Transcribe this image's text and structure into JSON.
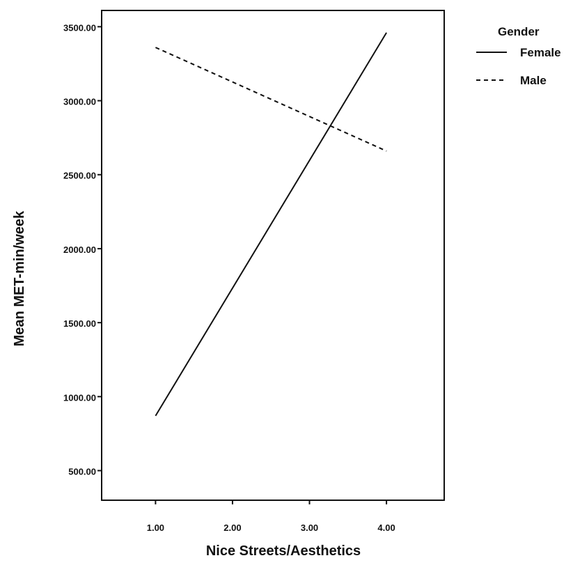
{
  "chart_data": {
    "type": "line",
    "xlabel": "Nice Streets/Aesthetics",
    "ylabel": "Mean MET-min/week",
    "x_ticks": [
      "1.00",
      "2.00",
      "3.00",
      "4.00"
    ],
    "y_ticks": [
      "500.00",
      "1000.00",
      "1500.00",
      "2000.00",
      "2500.00",
      "3000.00",
      "3500.00"
    ],
    "xlim": [
      0.3,
      4.75
    ],
    "ylim": [
      300,
      3610
    ],
    "legend_title": "Gender",
    "legend_position": "top-right",
    "grid": false,
    "series": [
      {
        "name": "Female",
        "style": "solid",
        "color": "#111111",
        "x": [
          1.0,
          4.0
        ],
        "y": [
          870,
          3460
        ]
      },
      {
        "name": "Male",
        "style": "dashed",
        "color": "#111111",
        "x": [
          1.0,
          4.0
        ],
        "y": [
          3360,
          2660
        ]
      }
    ]
  }
}
